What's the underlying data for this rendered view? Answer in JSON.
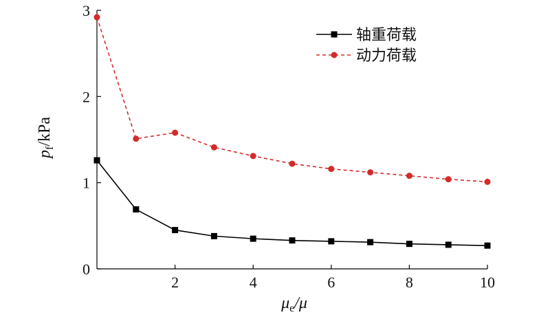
{
  "chart_data": {
    "type": "line",
    "xlabel": {
      "main": "μ",
      "sub": "e",
      "tail": "/μ"
    },
    "ylabel": {
      "main": "p",
      "sub": "f",
      "tail": "/kPa"
    },
    "x": [
      0,
      1,
      2,
      3,
      4,
      5,
      6,
      7,
      8,
      9,
      10
    ],
    "xlim": [
      0,
      10
    ],
    "ylim": [
      0,
      3
    ],
    "xticks": [
      2,
      4,
      6,
      8,
      10
    ],
    "xtick_labels": [
      "2",
      "4",
      "6",
      "8",
      "10"
    ],
    "yticks": [
      0,
      1,
      2,
      3
    ],
    "ytick_labels": [
      "0",
      "1",
      "2",
      "3"
    ],
    "grid": false,
    "legend_position": "top-right",
    "series": [
      {
        "name": "轴重荷载",
        "color": "#000000",
        "line_style": "solid",
        "marker": "square",
        "values": [
          1.26,
          0.69,
          0.45,
          0.38,
          0.35,
          0.33,
          0.32,
          0.31,
          0.29,
          0.28,
          0.27
        ]
      },
      {
        "name": "动力荷载",
        "color": "#d42a2a",
        "line_style": "dashed",
        "marker": "circle",
        "values": [
          2.92,
          1.51,
          1.58,
          1.41,
          1.31,
          1.22,
          1.16,
          1.12,
          1.08,
          1.04,
          1.01
        ]
      }
    ]
  }
}
